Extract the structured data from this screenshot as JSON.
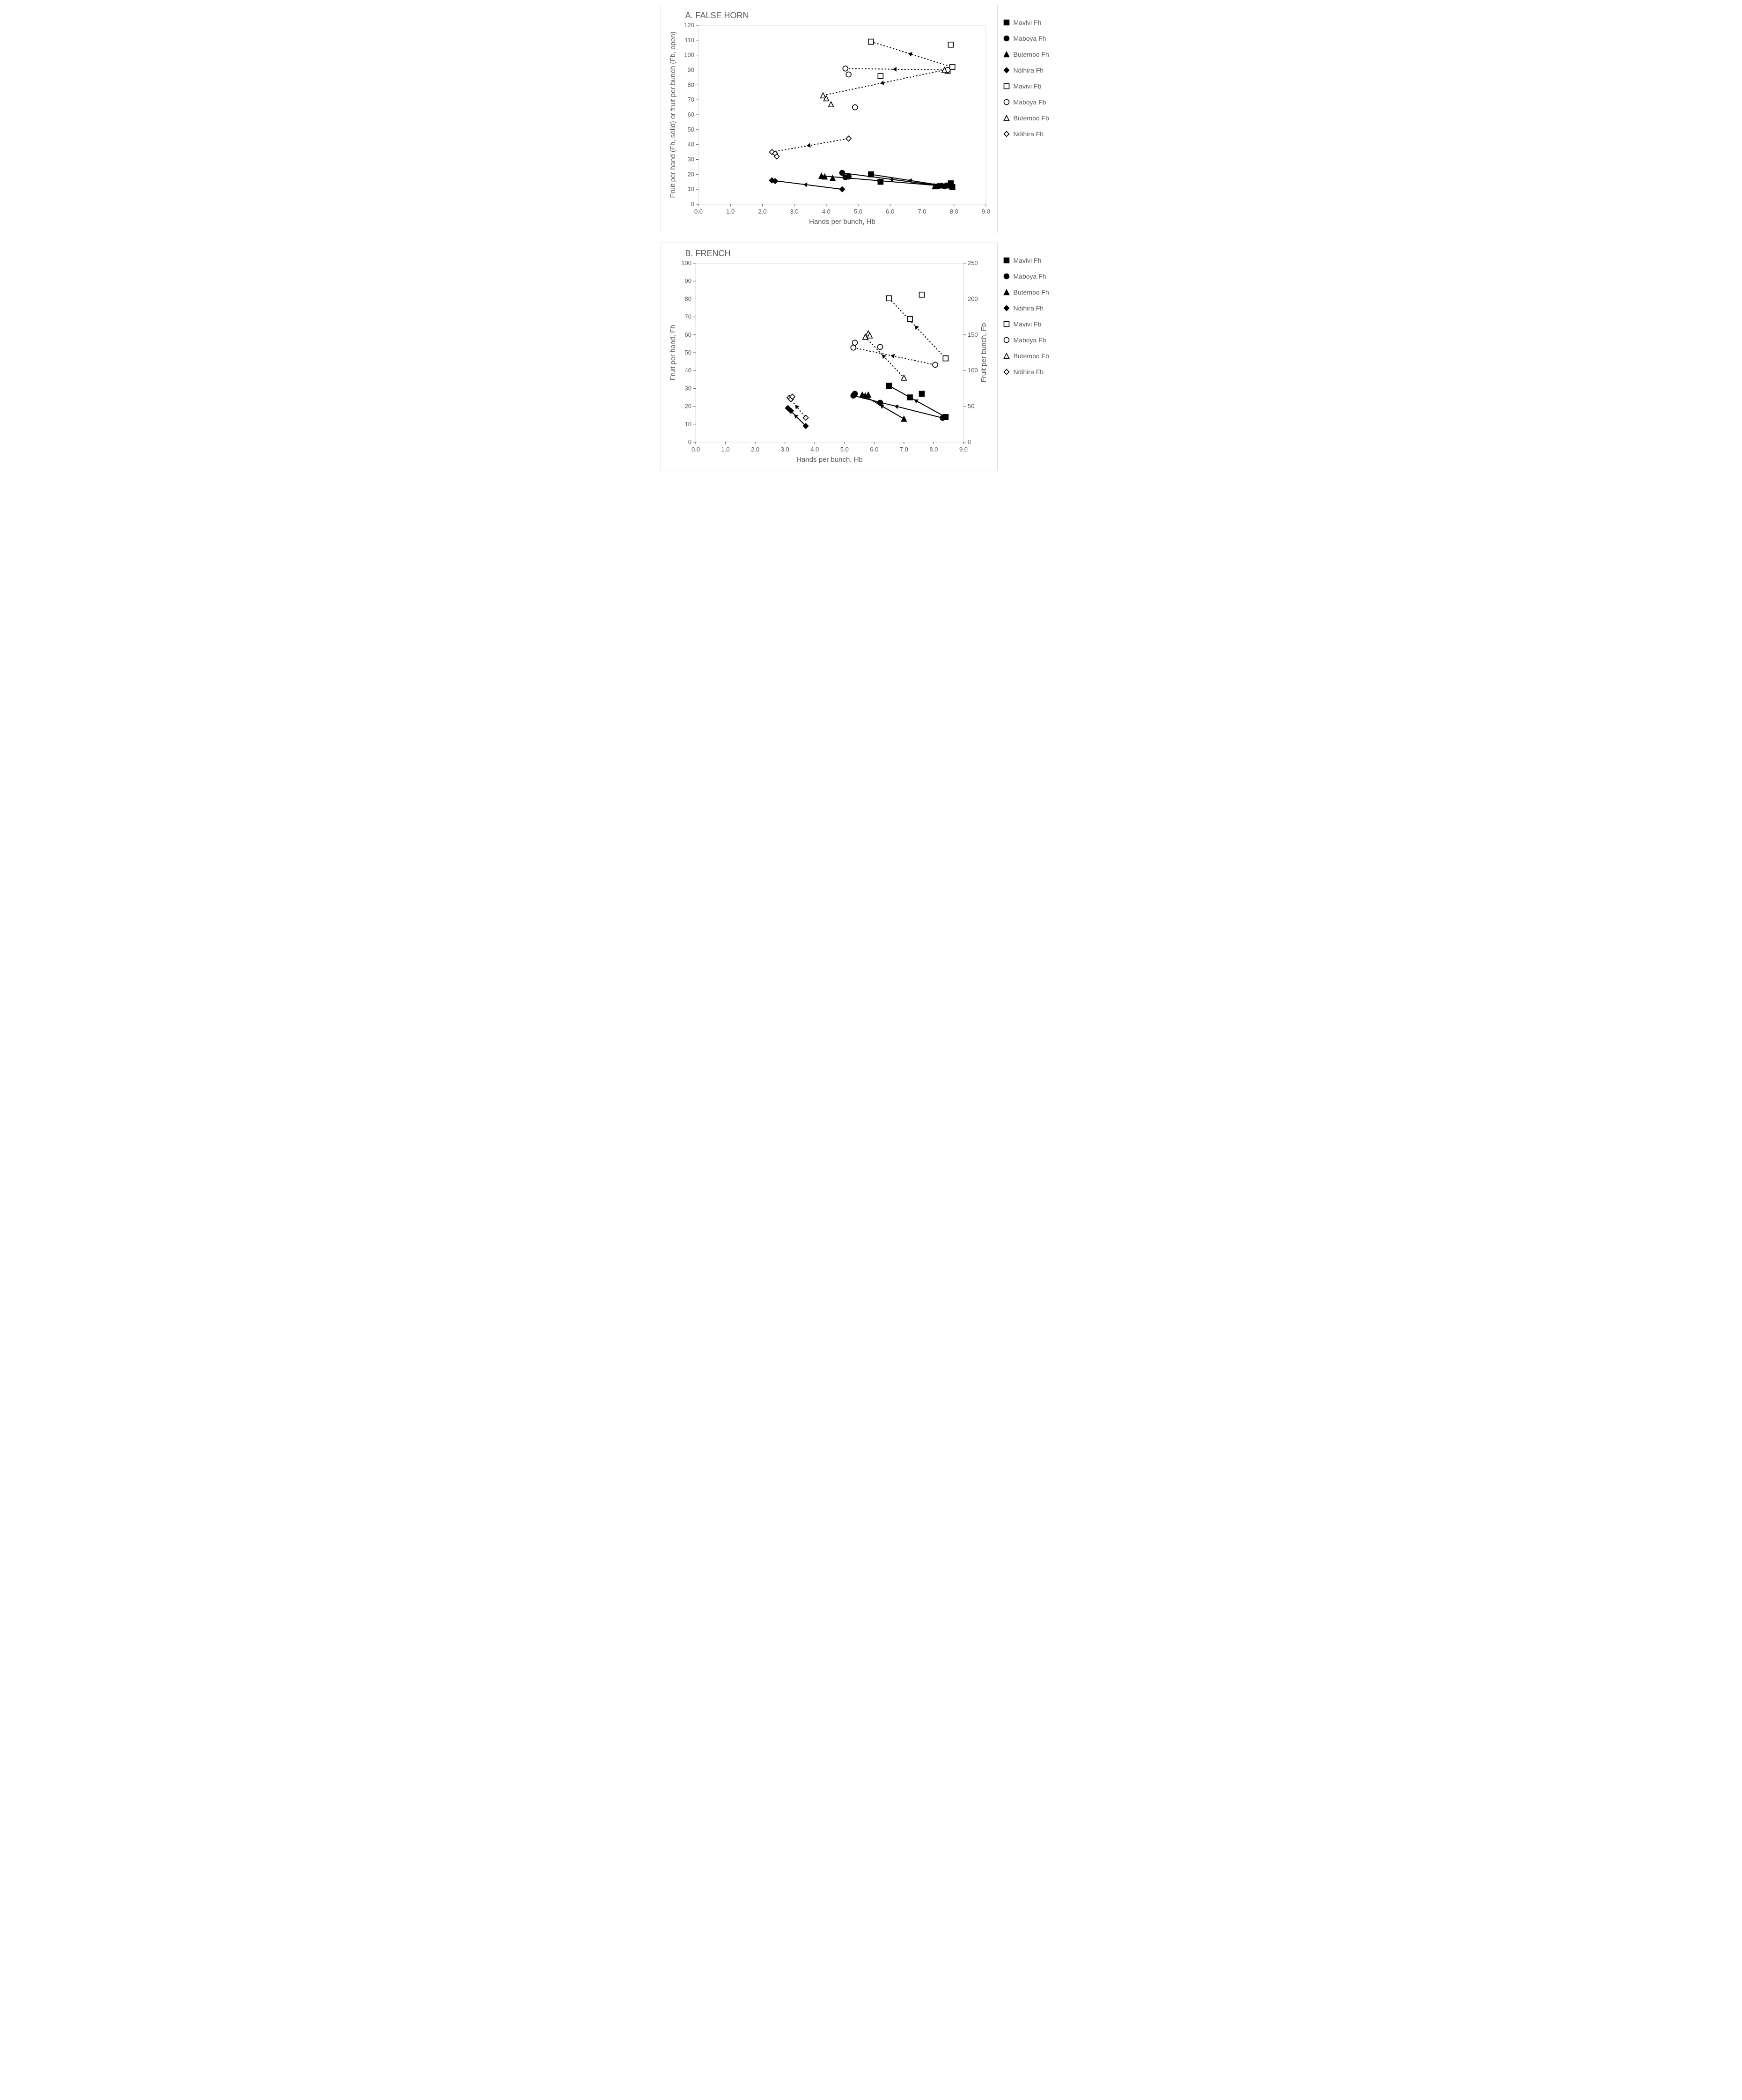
{
  "chartA": {
    "title": "A. FALSE HORN",
    "xlabel": "Hands per bunch, Hb",
    "ylabel": "Fruit per hand (Fh, solid) or fruit per bunch (Fb, open)",
    "xlim": [
      0,
      9
    ],
    "xtick_step": 1.0,
    "ylim": [
      0,
      120
    ],
    "ytick_step": 10,
    "plot_bg": "#ffffff",
    "frame_color": "#d9d9d9",
    "axis_color": "#595959",
    "tick_fontsize": 13,
    "label_fontsize": 15,
    "legend": [
      {
        "label": "Mavivi Fh",
        "marker": "square",
        "fill": "#000000",
        "open": false
      },
      {
        "label": "Maboya Fh",
        "marker": "circle",
        "fill": "#000000",
        "open": false
      },
      {
        "label": "Butembo Fh",
        "marker": "triangle",
        "fill": "#000000",
        "open": false
      },
      {
        "label": "Ndihira Fh",
        "marker": "diamond",
        "fill": "#000000",
        "open": false
      },
      {
        "label": "Mavivi Fb",
        "marker": "square",
        "fill": "#000000",
        "open": true
      },
      {
        "label": "Maboya Fb",
        "marker": "circle",
        "fill": "#000000",
        "open": true
      },
      {
        "label": "Butembo Fb",
        "marker": "triangle",
        "fill": "#000000",
        "open": true
      },
      {
        "label": "Ndihira Fb",
        "marker": "diamond",
        "fill": "#000000",
        "open": true
      }
    ],
    "series": [
      {
        "name": "Mavivi Fh",
        "marker": "square",
        "open": false,
        "line": "solid",
        "dir": "left",
        "pts": [
          [
            5.4,
            20
          ],
          [
            5.7,
            15
          ],
          [
            7.8,
            12.5
          ],
          [
            7.9,
            14
          ],
          [
            7.95,
            11.5
          ]
        ]
      },
      {
        "name": "Maboya Fh",
        "marker": "circle",
        "open": false,
        "line": "solid",
        "dir": "left",
        "pts": [
          [
            4.5,
            21
          ],
          [
            4.6,
            18
          ],
          [
            4.7,
            18.5
          ],
          [
            7.5,
            12
          ],
          [
            7.6,
            12.5
          ],
          [
            7.7,
            12
          ]
        ]
      },
      {
        "name": "Butembo Fh",
        "marker": "triangle",
        "open": false,
        "line": "solid",
        "dir": "left",
        "pts": [
          [
            3.85,
            19
          ],
          [
            3.95,
            18.5
          ],
          [
            4.2,
            17.5
          ],
          [
            7.4,
            12
          ],
          [
            7.5,
            12.5
          ]
        ]
      },
      {
        "name": "Ndihira Fh",
        "marker": "diamond",
        "open": false,
        "line": "solid",
        "dir": "left",
        "pts": [
          [
            2.3,
            16
          ],
          [
            2.4,
            15.5
          ],
          [
            4.5,
            10
          ]
        ]
      },
      {
        "name": "Mavivi Fb",
        "marker": "square",
        "open": true,
        "line": "dotted",
        "dir": "left",
        "pts": [
          [
            5.4,
            109
          ],
          [
            5.7,
            86
          ],
          [
            7.8,
            89.5
          ],
          [
            7.9,
            107
          ],
          [
            7.95,
            92
          ]
        ]
      },
      {
        "name": "Maboya Fb",
        "marker": "circle",
        "open": true,
        "line": "dotted",
        "dir": "left",
        "pts": [
          [
            4.6,
            91
          ],
          [
            4.7,
            87
          ],
          [
            4.9,
            65
          ],
          [
            7.8,
            90
          ]
        ]
      },
      {
        "name": "Butembo Fb",
        "marker": "triangle",
        "open": true,
        "line": "dotted",
        "dir": "left",
        "pts": [
          [
            3.9,
            73
          ],
          [
            4.0,
            71
          ],
          [
            4.15,
            67
          ],
          [
            7.7,
            90
          ]
        ]
      },
      {
        "name": "Ndihira Fb",
        "marker": "diamond",
        "open": true,
        "line": "dotted",
        "dir": "left",
        "pts": [
          [
            2.3,
            35
          ],
          [
            2.4,
            34
          ],
          [
            2.45,
            32
          ],
          [
            4.7,
            44
          ]
        ]
      }
    ]
  },
  "chartB": {
    "title": "B. FRENCH",
    "xlabel": "Hands per bunch, Hb",
    "ylabel": "Fruit per hand, Fh",
    "ylabel2": "Fruit per bunch, Fb",
    "xlim": [
      0,
      9
    ],
    "xtick_step": 1.0,
    "ylim": [
      0,
      100
    ],
    "ytick_step": 10,
    "ylim2": [
      0,
      250
    ],
    "ytick2_step": 50,
    "plot_bg": "#ffffff",
    "frame_color": "#d9d9d9",
    "axis_color": "#595959",
    "tick_fontsize": 13,
    "label_fontsize": 15,
    "legend": [
      {
        "label": "Mavivi Fh",
        "marker": "square",
        "fill": "#000000",
        "open": false
      },
      {
        "label": "Maboya Fh",
        "marker": "circle",
        "fill": "#000000",
        "open": false
      },
      {
        "label": "Butembo Fh",
        "marker": "triangle",
        "fill": "#000000",
        "open": false
      },
      {
        "label": "Ndihira Fh",
        "marker": "diamond",
        "fill": "#000000",
        "open": false
      },
      {
        "label": "Mavivi Fb",
        "marker": "square",
        "fill": "#000000",
        "open": true
      },
      {
        "label": "Maboya Fb",
        "marker": "circle",
        "fill": "#000000",
        "open": true
      },
      {
        "label": "Butembo Fb",
        "marker": "triangle",
        "fill": "#000000",
        "open": true
      },
      {
        "label": "Ndihira Fb",
        "marker": "diamond",
        "fill": "#000000",
        "open": true
      }
    ],
    "series": [
      {
        "name": "Mavivi Fh",
        "marker": "square",
        "open": false,
        "line": "solid",
        "dir": "left",
        "axis": "left",
        "pts": [
          [
            6.5,
            31.5
          ],
          [
            7.2,
            25
          ],
          [
            7.6,
            27
          ],
          [
            8.4,
            14
          ],
          [
            8.4,
            14
          ]
        ]
      },
      {
        "name": "Maboya Fh",
        "marker": "circle",
        "open": false,
        "line": "solid",
        "dir": "left",
        "axis": "left",
        "pts": [
          [
            5.3,
            26
          ],
          [
            5.35,
            27
          ],
          [
            6.2,
            22
          ],
          [
            8.3,
            13.5
          ]
        ]
      },
      {
        "name": "Butembo Fh",
        "marker": "triangle",
        "open": false,
        "line": "solid",
        "dir": "left",
        "axis": "left",
        "pts": [
          [
            5.6,
            26.5
          ],
          [
            5.7,
            26
          ],
          [
            5.8,
            26.5
          ],
          [
            7.0,
            13
          ]
        ]
      },
      {
        "name": "Ndihira Fh",
        "marker": "diamond",
        "open": false,
        "line": "solid",
        "dir": "left",
        "axis": "left",
        "pts": [
          [
            3.1,
            19
          ],
          [
            3.2,
            17.5
          ],
          [
            3.7,
            9
          ]
        ]
      },
      {
        "name": "Mavivi Fb",
        "marker": "square",
        "open": true,
        "line": "dotted",
        "dir": "left",
        "axis": "right",
        "pts": [
          [
            6.5,
            201
          ],
          [
            7.2,
            172
          ],
          [
            7.6,
            206
          ],
          [
            8.4,
            117
          ],
          [
            8.4,
            117
          ]
        ]
      },
      {
        "name": "Maboya Fb",
        "marker": "circle",
        "open": true,
        "line": "dotted",
        "dir": "left",
        "axis": "right",
        "pts": [
          [
            5.3,
            132
          ],
          [
            5.35,
            139
          ],
          [
            6.2,
            133
          ],
          [
            8.05,
            108
          ]
        ]
      },
      {
        "name": "Butembo Fb",
        "marker": "triangle",
        "open": true,
        "line": "dotted",
        "dir": "left",
        "axis": "right",
        "pts": [
          [
            5.7,
            147
          ],
          [
            5.8,
            152
          ],
          [
            5.85,
            149
          ],
          [
            7.0,
            90
          ]
        ]
      },
      {
        "name": "Ndihira Fb",
        "marker": "diamond",
        "open": true,
        "line": "dotted",
        "dir": "left",
        "axis": "right",
        "pts": [
          [
            3.15,
            62
          ],
          [
            3.2,
            60
          ],
          [
            3.25,
            63.5
          ],
          [
            3.7,
            34
          ]
        ]
      }
    ]
  }
}
